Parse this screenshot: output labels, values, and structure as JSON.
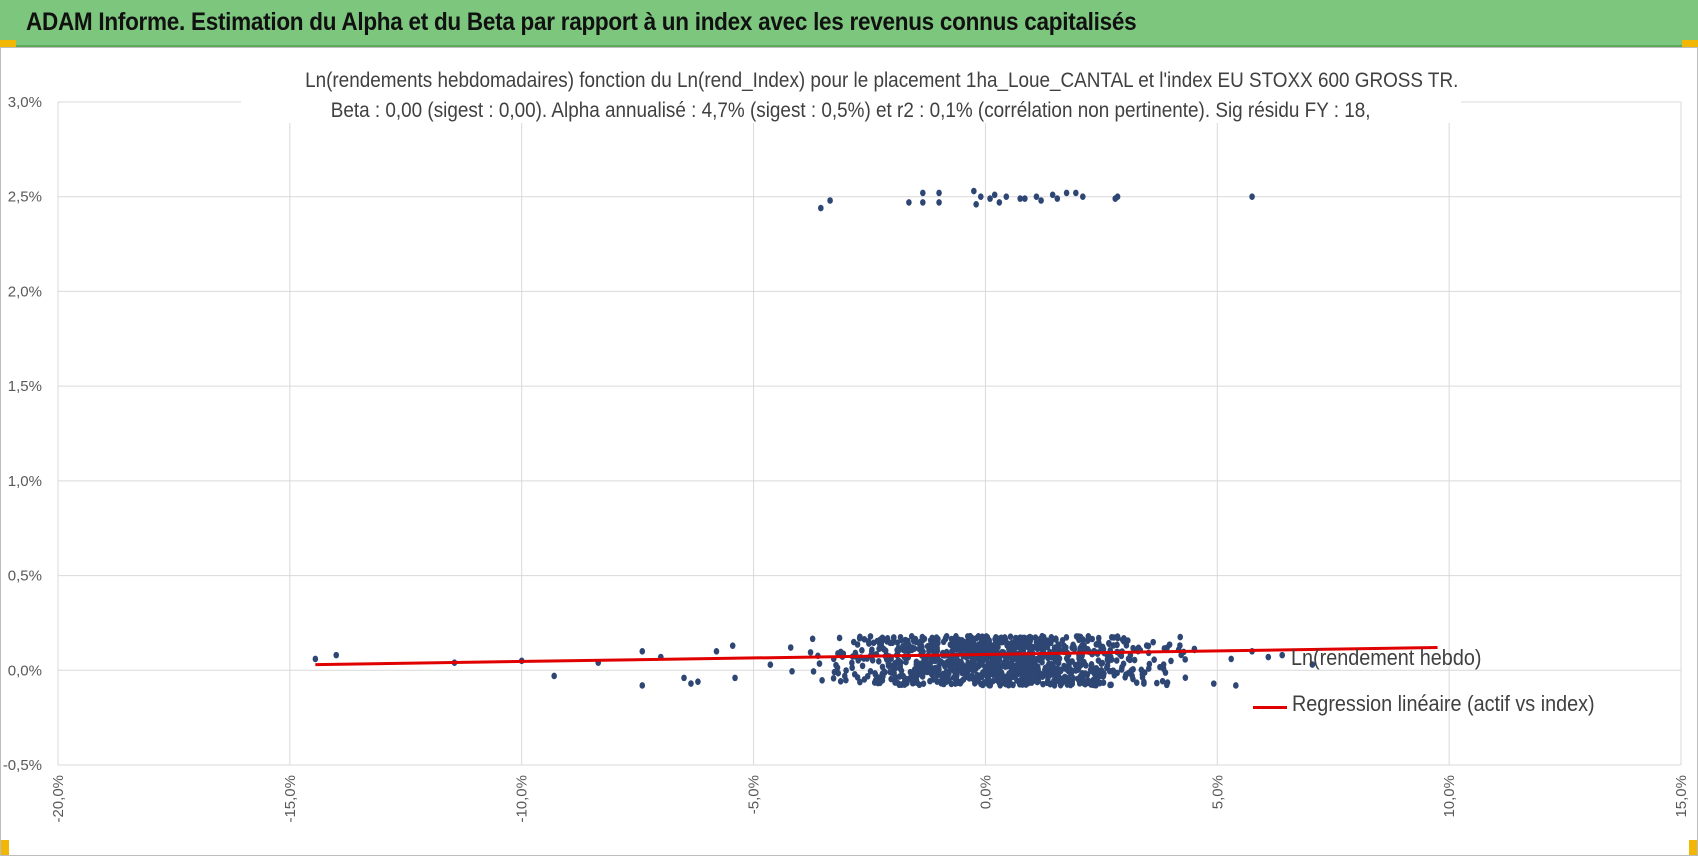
{
  "banner": {
    "title": "ADAM Informe. Estimation du Alpha et du Beta par rapport à un index avec les revenus connus capitalisés"
  },
  "chart_data": {
    "type": "scatter",
    "title": "Ln(rendements hebdomadaires) fonction du Ln(rend_Index) pour le placement 1ha_Loue_CANTAL et l'index EU STOXX 600 GROSS TR.",
    "subtitle": "Beta : 0,00 (sigest : 0,00).  Alpha annualisé : 4,7% (sigest : 0,5%) et r2 : 0,1% (corrélation non pertinente). Sig résidu FY : 18,",
    "xlabel": "",
    "ylabel": "",
    "xlim": [
      -0.2,
      0.15
    ],
    "ylim": [
      -0.005,
      0.03
    ],
    "x_ticks": [
      -0.2,
      -0.15,
      -0.1,
      -0.05,
      0.0,
      0.05,
      0.1,
      0.15
    ],
    "x_tick_labels": [
      "-20,0%",
      "-15,0%",
      "-10,0%",
      "-5,0%",
      "0,0%",
      "5,0%",
      "10,0%",
      "15,0%"
    ],
    "y_ticks": [
      -0.005,
      0.0,
      0.005,
      0.01,
      0.015,
      0.02,
      0.025,
      0.03
    ],
    "y_tick_labels": [
      "-0,5%",
      "0,0%",
      "0,5%",
      "1,0%",
      "1,5%",
      "2,0%",
      "2,5%",
      "3,0%"
    ],
    "grid": true,
    "legend_position": "right",
    "series": [
      {
        "name": "Ln(rendement hebdo)",
        "kind": "scatter",
        "color": "#2e4674",
        "points_upper_cluster": [
          [
            -0.0355,
            0.0244
          ],
          [
            -0.0335,
            0.0248
          ],
          [
            -0.0165,
            0.0247
          ],
          [
            -0.0135,
            0.0252
          ],
          [
            -0.0135,
            0.0247
          ],
          [
            -0.01,
            0.0252
          ],
          [
            -0.01,
            0.0247
          ],
          [
            -0.0025,
            0.0253
          ],
          [
            -0.002,
            0.0246
          ],
          [
            -0.001,
            0.025
          ],
          [
            0.001,
            0.0249
          ],
          [
            0.002,
            0.0251
          ],
          [
            0.003,
            0.0247
          ],
          [
            0.0045,
            0.025
          ],
          [
            0.0075,
            0.0249
          ],
          [
            0.0085,
            0.0249
          ],
          [
            0.011,
            0.025
          ],
          [
            0.012,
            0.0248
          ],
          [
            0.0145,
            0.0251
          ],
          [
            0.0155,
            0.0249
          ],
          [
            0.0175,
            0.0252
          ],
          [
            0.0195,
            0.0252
          ],
          [
            0.021,
            0.025
          ],
          [
            0.028,
            0.0249
          ],
          [
            0.0285,
            0.025
          ],
          [
            0.0575,
            0.025
          ]
        ],
        "points_lower_outliers": [
          [
            -0.1445,
            0.0006
          ],
          [
            -0.14,
            0.0008
          ],
          [
            -0.1145,
            0.0004
          ],
          [
            -0.1,
            0.0005
          ],
          [
            -0.093,
            -0.0003
          ],
          [
            -0.0835,
            0.0004
          ],
          [
            -0.074,
            0.001
          ],
          [
            -0.074,
            -0.0008
          ],
          [
            -0.07,
            0.0007
          ],
          [
            -0.065,
            -0.0004
          ],
          [
            -0.0635,
            -0.0007
          ],
          [
            -0.062,
            -0.0006
          ],
          [
            -0.058,
            0.001
          ],
          [
            -0.0545,
            0.0013
          ],
          [
            -0.054,
            -0.0004
          ],
          [
            0.053,
            0.0006
          ],
          [
            0.054,
            -0.0008
          ],
          [
            0.0575,
            0.001
          ],
          [
            0.061,
            0.0007
          ],
          [
            0.064,
            0.0008
          ],
          [
            0.0705,
            0.0003
          ]
        ],
        "dense_cluster": {
          "x_center": 0.003,
          "x_spread": 0.017,
          "x_min": -0.048,
          "x_max": 0.05,
          "y_center": 0.0005,
          "y_min": -0.0008,
          "y_max": 0.0018,
          "count": 1150
        }
      },
      {
        "name": "Regression linéaire (actif vs index)",
        "kind": "line",
        "color": "#e00000",
        "x": [
          -0.1445,
          0.0975
        ],
        "y": [
          0.0003,
          0.0012
        ]
      }
    ]
  }
}
